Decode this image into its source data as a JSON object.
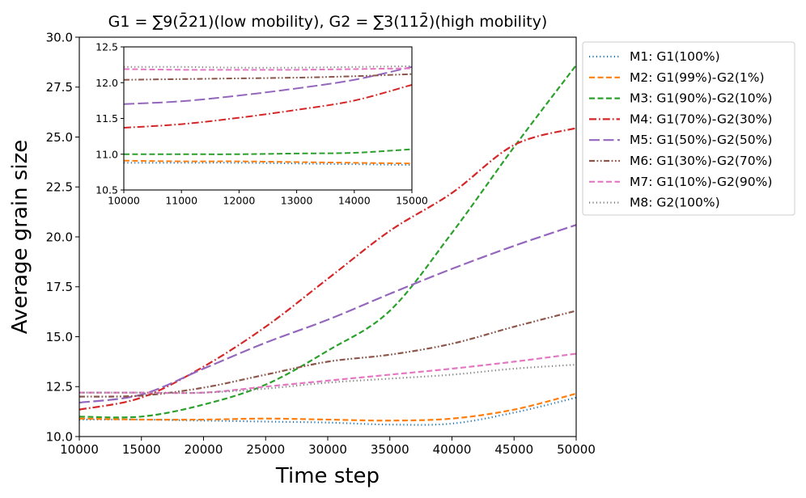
{
  "chart_data": [
    {
      "type": "line",
      "title": "G1 = ∑9(2̄21)(low mobility), G2 = ∑3(112̄)(high mobility)",
      "xlabel": "Time step",
      "ylabel": "Average grain size",
      "xlim": [
        10000,
        50000
      ],
      "ylim": [
        10.0,
        30.0
      ],
      "xticks": [
        10000,
        15000,
        20000,
        25000,
        30000,
        35000,
        40000,
        45000,
        50000
      ],
      "yticks": [
        10.0,
        12.5,
        15.0,
        17.5,
        20.0,
        22.5,
        25.0,
        27.5,
        30.0
      ],
      "ytick_labels": [
        "10.0",
        "12.5",
        "15.0",
        "17.5",
        "20.0",
        "22.5",
        "25.0",
        "27.5",
        "30.0"
      ],
      "legend_position": "outside-right-top",
      "x": [
        10000,
        15000,
        20000,
        25000,
        30000,
        35000,
        40000,
        45000,
        50000
      ],
      "series": [
        {
          "name": "M1: G1(100%)",
          "color": "#1f77b4",
          "dash": "dotted",
          "values": [
            10.85,
            10.85,
            10.8,
            10.75,
            10.7,
            10.6,
            10.65,
            11.2,
            11.95
          ]
        },
        {
          "name": "M2: G1(99%)-G2(1%)",
          "color": "#ff7f0e",
          "dash": "dashed",
          "values": [
            10.9,
            10.85,
            10.85,
            10.9,
            10.85,
            10.8,
            10.9,
            11.35,
            12.15
          ]
        },
        {
          "name": "M3: G1(90%)-G2(10%)",
          "color": "#2ca02c",
          "dash": "dashed",
          "values": [
            11.0,
            11.0,
            11.6,
            12.6,
            14.3,
            16.3,
            20.2,
            24.5,
            28.6
          ]
        },
        {
          "name": "M4: G1(70%)-G2(30%)",
          "color": "#d62728",
          "dash": "dashdot",
          "values": [
            11.35,
            11.95,
            13.5,
            15.5,
            17.9,
            20.3,
            22.2,
            24.6,
            25.45
          ]
        },
        {
          "name": "M5: G1(50%)-G2(50%)",
          "color": "#9467bd",
          "dash": "longdash",
          "values": [
            11.7,
            12.1,
            13.4,
            14.7,
            15.85,
            17.15,
            18.4,
            19.55,
            20.6
          ]
        },
        {
          "name": "M6: G1(30%)-G2(70%)",
          "color": "#8c564b",
          "dash": "dashdotdot",
          "values": [
            12.0,
            12.05,
            12.45,
            13.1,
            13.75,
            14.1,
            14.65,
            15.5,
            16.3
          ]
        },
        {
          "name": "M7: G1(10%)-G2(90%)",
          "color": "#e377c2",
          "dash": "dashed",
          "values": [
            12.2,
            12.2,
            12.2,
            12.5,
            12.8,
            13.1,
            13.4,
            13.75,
            14.15
          ]
        },
        {
          "name": "M8: G2(100%)",
          "color": "#7f7f7f",
          "dash": "dotted",
          "values": [
            12.2,
            12.2,
            12.2,
            12.4,
            12.7,
            12.9,
            13.1,
            13.4,
            13.6
          ]
        }
      ]
    },
    {
      "type": "line",
      "title": "",
      "xlabel": "",
      "ylabel": "",
      "inset": true,
      "xlim": [
        10000,
        15000
      ],
      "ylim": [
        10.5,
        12.5
      ],
      "xticks": [
        10000,
        11000,
        12000,
        13000,
        14000,
        15000
      ],
      "yticks": [
        10.5,
        11.0,
        11.5,
        12.0,
        12.5
      ],
      "ytick_labels": [
        "10.5",
        "11.0",
        "11.5",
        "12.0",
        "12.5"
      ],
      "x": [
        10000,
        11000,
        12000,
        13000,
        14000,
        15000
      ],
      "series": [
        {
          "name": "M1",
          "color": "#1f77b4",
          "dash": "dotted",
          "values": [
            10.88,
            10.88,
            10.88,
            10.87,
            10.86,
            10.85
          ]
        },
        {
          "name": "M2",
          "color": "#ff7f0e",
          "dash": "dashed",
          "values": [
            10.91,
            10.9,
            10.9,
            10.89,
            10.88,
            10.87
          ]
        },
        {
          "name": "M3",
          "color": "#2ca02c",
          "dash": "dashed",
          "values": [
            11.0,
            11.0,
            11.0,
            11.01,
            11.02,
            11.07
          ]
        },
        {
          "name": "M4",
          "color": "#d62728",
          "dash": "dashdot",
          "values": [
            11.37,
            11.42,
            11.51,
            11.62,
            11.75,
            11.97
          ]
        },
        {
          "name": "M5",
          "color": "#9467bd",
          "dash": "longdash",
          "values": [
            11.7,
            11.74,
            11.82,
            11.92,
            12.04,
            12.22
          ]
        },
        {
          "name": "M6",
          "color": "#8c564b",
          "dash": "dashdotdot",
          "values": [
            12.04,
            12.05,
            12.06,
            12.07,
            12.09,
            12.12
          ]
        },
        {
          "name": "M7",
          "color": "#e377c2",
          "dash": "dashed",
          "values": [
            12.19,
            12.18,
            12.18,
            12.18,
            12.19,
            12.2
          ]
        },
        {
          "name": "M8",
          "color": "#7f7f7f",
          "dash": "dotted",
          "values": [
            12.22,
            12.22,
            12.21,
            12.21,
            12.22,
            12.23
          ]
        }
      ]
    }
  ]
}
